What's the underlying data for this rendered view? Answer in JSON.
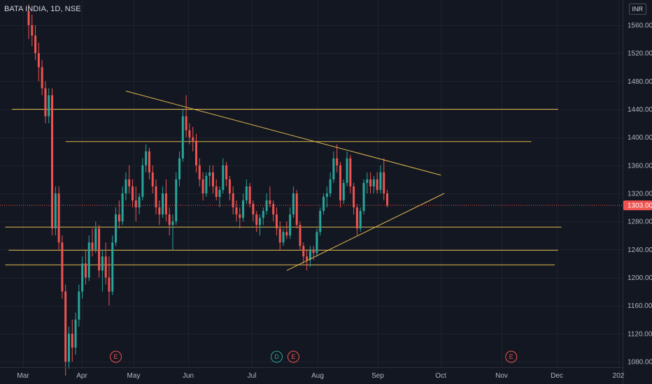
{
  "header": {
    "title": "BATA INDIA, 1D, NSE",
    "currency": "INR"
  },
  "colors": {
    "background": "#131722",
    "up": "#26a69a",
    "down": "#ef5350",
    "trendline": "#e0b84f",
    "grid": "#1e222d",
    "axis_text": "#b2b5be",
    "last_price_bg": "#ef5350"
  },
  "chart_data": {
    "type": "candlestick",
    "symbol": "BATA INDIA",
    "interval": "1D",
    "exchange": "NSE",
    "ylim": [
      1060,
      1580
    ],
    "y_ticks": [
      1080,
      1120,
      1160,
      1200,
      1240,
      1280,
      1320,
      1360,
      1400,
      1440,
      1480,
      1520,
      1560
    ],
    "y_tick_labels": [
      "1080.00",
      "1120.00",
      "1160.00",
      "1200.00",
      "1240.00",
      "1280.00",
      "1320.00",
      "1360.00",
      "1400.00",
      "1440.00",
      "1480.00",
      "1520.00",
      "1560.00"
    ],
    "x_tick_labels": [
      "Mar",
      "Apr",
      "May",
      "Jun",
      "Jul",
      "Aug",
      "Sep",
      "Oct",
      "Nov",
      "Dec",
      "202"
    ],
    "last_price": 1303,
    "last_price_label": "1303.00",
    "candles_ohlc": [
      [
        1580,
        1590,
        1540,
        1560
      ],
      [
        1560,
        1575,
        1530,
        1545
      ],
      [
        1545,
        1560,
        1510,
        1520
      ],
      [
        1520,
        1535,
        1480,
        1500
      ],
      [
        1500,
        1510,
        1460,
        1470
      ],
      [
        1470,
        1480,
        1420,
        1430
      ],
      [
        1430,
        1470,
        1420,
        1460
      ],
      [
        1460,
        1470,
        1260,
        1270
      ],
      [
        1270,
        1330,
        1260,
        1320
      ],
      [
        1320,
        1330,
        1240,
        1250
      ],
      [
        1250,
        1260,
        1170,
        1180
      ],
      [
        1180,
        1190,
        1060,
        1080
      ],
      [
        1080,
        1130,
        1070,
        1120
      ],
      [
        1120,
        1140,
        1080,
        1100
      ],
      [
        1100,
        1150,
        1090,
        1140
      ],
      [
        1140,
        1190,
        1130,
        1180
      ],
      [
        1180,
        1230,
        1170,
        1220
      ],
      [
        1220,
        1240,
        1190,
        1200
      ],
      [
        1200,
        1260,
        1195,
        1250
      ],
      [
        1250,
        1270,
        1230,
        1240
      ],
      [
        1240,
        1280,
        1235,
        1270
      ],
      [
        1270,
        1275,
        1200,
        1210
      ],
      [
        1210,
        1240,
        1180,
        1230
      ],
      [
        1230,
        1250,
        1190,
        1200
      ],
      [
        1200,
        1230,
        1160,
        1180
      ],
      [
        1180,
        1260,
        1175,
        1250
      ],
      [
        1250,
        1300,
        1245,
        1290
      ],
      [
        1290,
        1310,
        1270,
        1280
      ],
      [
        1280,
        1330,
        1275,
        1320
      ],
      [
        1320,
        1350,
        1310,
        1340
      ],
      [
        1340,
        1360,
        1320,
        1330
      ],
      [
        1330,
        1340,
        1300,
        1310
      ],
      [
        1310,
        1330,
        1280,
        1300
      ],
      [
        1300,
        1320,
        1290,
        1315
      ],
      [
        1315,
        1370,
        1310,
        1360
      ],
      [
        1360,
        1390,
        1350,
        1380
      ],
      [
        1380,
        1385,
        1340,
        1350
      ],
      [
        1350,
        1360,
        1320,
        1330
      ],
      [
        1330,
        1340,
        1290,
        1300
      ],
      [
        1300,
        1310,
        1275,
        1290
      ],
      [
        1290,
        1330,
        1285,
        1320
      ],
      [
        1320,
        1340,
        1280,
        1290
      ],
      [
        1290,
        1300,
        1260,
        1275
      ],
      [
        1275,
        1290,
        1240,
        1280
      ],
      [
        1280,
        1350,
        1275,
        1340
      ],
      [
        1340,
        1380,
        1330,
        1370
      ],
      [
        1370,
        1440,
        1365,
        1430
      ],
      [
        1430,
        1460,
        1400,
        1410
      ],
      [
        1410,
        1420,
        1390,
        1400
      ],
      [
        1400,
        1415,
        1380,
        1395
      ],
      [
        1395,
        1405,
        1350,
        1360
      ],
      [
        1360,
        1370,
        1330,
        1340
      ],
      [
        1340,
        1350,
        1310,
        1320
      ],
      [
        1320,
        1350,
        1315,
        1345
      ],
      [
        1345,
        1360,
        1330,
        1350
      ],
      [
        1350,
        1360,
        1320,
        1330
      ],
      [
        1330,
        1340,
        1310,
        1315
      ],
      [
        1315,
        1330,
        1300,
        1325
      ],
      [
        1325,
        1370,
        1320,
        1360
      ],
      [
        1360,
        1365,
        1330,
        1340
      ],
      [
        1340,
        1345,
        1310,
        1320
      ],
      [
        1320,
        1330,
        1290,
        1300
      ],
      [
        1300,
        1310,
        1280,
        1290
      ],
      [
        1290,
        1300,
        1270,
        1285
      ],
      [
        1285,
        1320,
        1280,
        1310
      ],
      [
        1310,
        1340,
        1305,
        1330
      ],
      [
        1330,
        1335,
        1300,
        1305
      ],
      [
        1305,
        1310,
        1280,
        1290
      ],
      [
        1290,
        1295,
        1265,
        1275
      ],
      [
        1275,
        1290,
        1260,
        1285
      ],
      [
        1285,
        1300,
        1275,
        1295
      ],
      [
        1295,
        1320,
        1290,
        1310
      ],
      [
        1310,
        1330,
        1300,
        1305
      ],
      [
        1305,
        1310,
        1280,
        1290
      ],
      [
        1290,
        1300,
        1260,
        1270
      ],
      [
        1270,
        1280,
        1240,
        1250
      ],
      [
        1250,
        1270,
        1245,
        1265
      ],
      [
        1265,
        1280,
        1255,
        1260
      ],
      [
        1260,
        1300,
        1255,
        1290
      ],
      [
        1290,
        1330,
        1285,
        1320
      ],
      [
        1320,
        1325,
        1270,
        1275
      ],
      [
        1275,
        1280,
        1240,
        1245
      ],
      [
        1245,
        1250,
        1220,
        1230
      ],
      [
        1230,
        1240,
        1210,
        1225
      ],
      [
        1225,
        1245,
        1215,
        1240
      ],
      [
        1240,
        1245,
        1225,
        1235
      ],
      [
        1235,
        1270,
        1230,
        1265
      ],
      [
        1265,
        1300,
        1260,
        1295
      ],
      [
        1295,
        1320,
        1290,
        1315
      ],
      [
        1315,
        1330,
        1300,
        1320
      ],
      [
        1320,
        1350,
        1315,
        1340
      ],
      [
        1340,
        1380,
        1335,
        1370
      ],
      [
        1370,
        1390,
        1350,
        1360
      ],
      [
        1360,
        1365,
        1300,
        1310
      ],
      [
        1310,
        1340,
        1305,
        1335
      ],
      [
        1335,
        1380,
        1330,
        1370
      ],
      [
        1370,
        1375,
        1320,
        1330
      ],
      [
        1330,
        1335,
        1290,
        1300
      ],
      [
        1300,
        1305,
        1260,
        1270
      ],
      [
        1270,
        1300,
        1265,
        1295
      ],
      [
        1295,
        1340,
        1290,
        1335
      ],
      [
        1335,
        1350,
        1320,
        1340
      ],
      [
        1340,
        1350,
        1320,
        1330
      ],
      [
        1330,
        1345,
        1320,
        1340
      ],
      [
        1340,
        1350,
        1320,
        1325
      ],
      [
        1325,
        1360,
        1320,
        1350
      ],
      [
        1350,
        1370,
        1310,
        1320
      ],
      [
        1320,
        1325,
        1300,
        1303
      ]
    ],
    "horizontal_lines": [
      {
        "price": 1440,
        "from_candle": -5,
        "to_candle": 158
      },
      {
        "price": 1394,
        "from_candle": 11,
        "to_candle": 150
      },
      {
        "price": 1272,
        "from_candle": -7,
        "to_candle": 159
      },
      {
        "price": 1239,
        "from_candle": -6,
        "to_candle": 158
      },
      {
        "price": 1218,
        "from_candle": -7,
        "to_candle": 157
      }
    ],
    "trend_lines": [
      {
        "from": [
          29,
          1466
        ],
        "to": [
          123,
          1346
        ]
      },
      {
        "from": [
          77,
          1210
        ],
        "to": [
          124,
          1320
        ]
      }
    ],
    "events": [
      {
        "label": "E",
        "candle": 26,
        "color": "#ef5350"
      },
      {
        "label": "D",
        "candle": 74,
        "color": "#26a69a"
      },
      {
        "label": "E",
        "candle": 79,
        "color": "#ef5350"
      },
      {
        "label": "E",
        "candle": 144,
        "color": "#ef5350"
      }
    ]
  }
}
